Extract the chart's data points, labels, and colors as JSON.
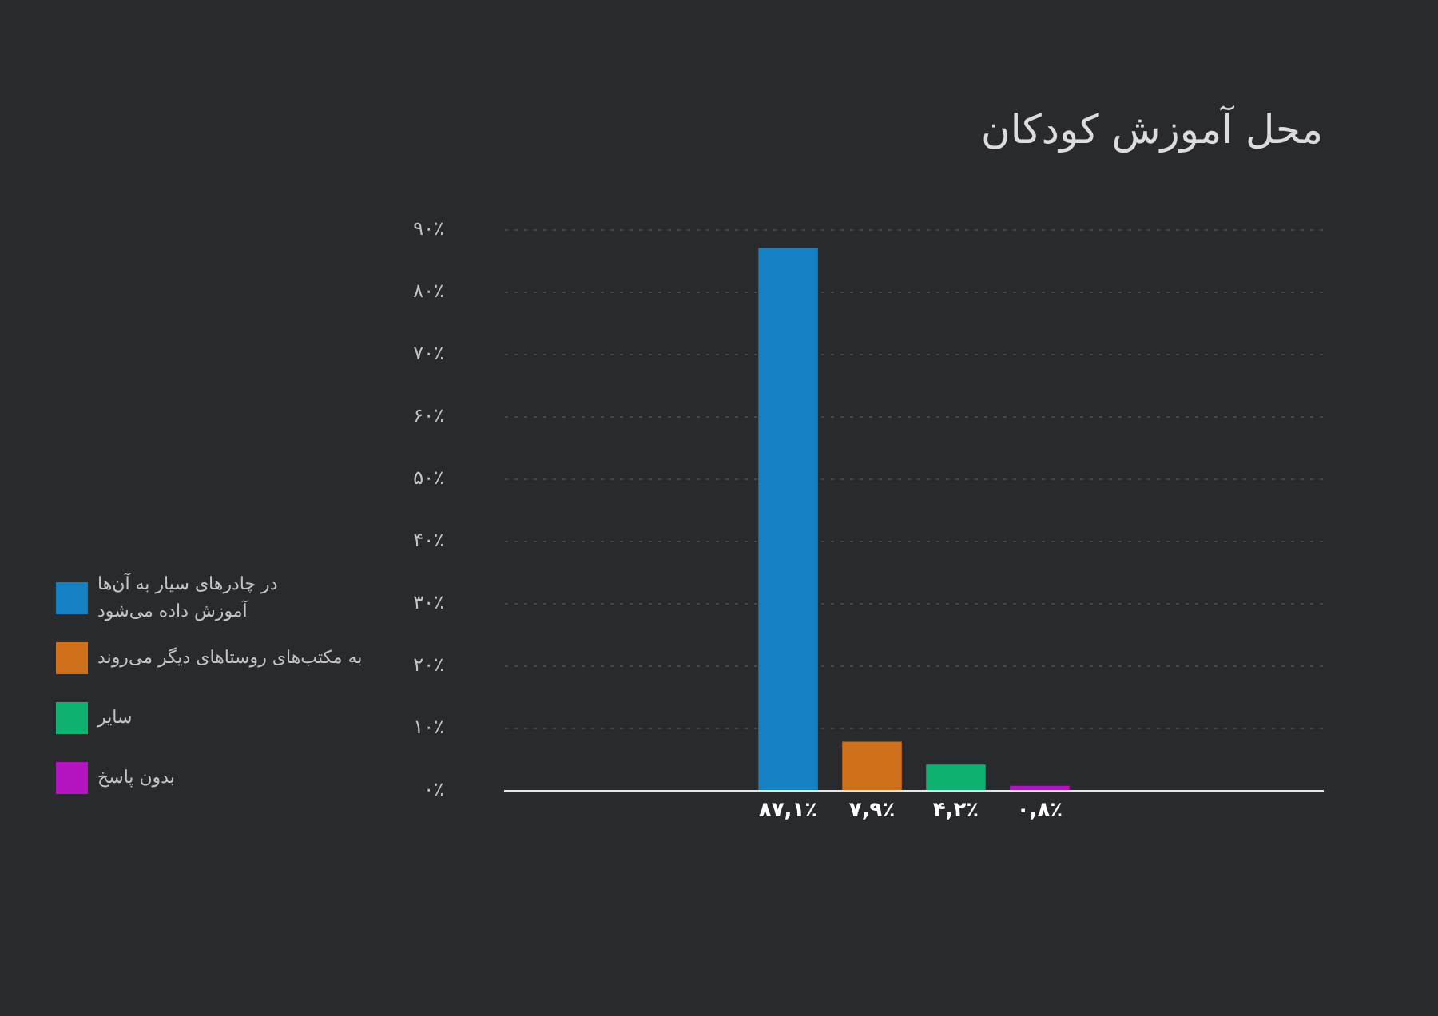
{
  "chart_data": {
    "type": "bar",
    "title": "محل آموزش کودکان",
    "categories": [
      null
    ],
    "series": [
      {
        "name": "در چادرهای سیار به آن‌ها آموزش داده می‌شود",
        "color": "#1580c4",
        "values": [
          87.1
        ],
        "value_labels": [
          "۸۷,۱٪"
        ]
      },
      {
        "name": "به مکتب‌های روستاهای دیگر می‌روند",
        "color": "#d0701a",
        "values": [
          7.9
        ],
        "value_labels": [
          "۷,۹٪"
        ]
      },
      {
        "name": "سایر",
        "color": "#10b070",
        "values": [
          4.2
        ],
        "value_labels": [
          "۴,۲٪"
        ]
      },
      {
        "name": "بدون پاسخ",
        "color": "#b414c0",
        "values": [
          0.8
        ],
        "value_labels": [
          "۰,۸٪"
        ]
      }
    ],
    "ylim": [
      0,
      90
    ],
    "yticks": [
      {
        "value": 0,
        "label": "۰٪"
      },
      {
        "value": 10,
        "label": "۱۰٪"
      },
      {
        "value": 20,
        "label": "۲۰٪"
      },
      {
        "value": 30,
        "label": "۳۰٪"
      },
      {
        "value": 40,
        "label": "۴۰٪"
      },
      {
        "value": 50,
        "label": "۵۰٪"
      },
      {
        "value": 60,
        "label": "۶۰٪"
      },
      {
        "value": 70,
        "label": "۷۰٪"
      },
      {
        "value": 80,
        "label": "۸۰٪"
      },
      {
        "value": 90,
        "label": "۹۰٪"
      }
    ],
    "grid": "y",
    "legend": "left"
  }
}
